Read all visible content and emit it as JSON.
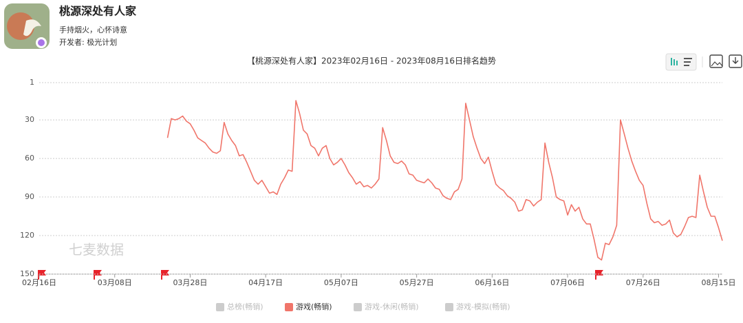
{
  "app": {
    "name": "桃源深处有人家",
    "tagline": "手持烟火，心怀诗意",
    "developer": "开发者: 极光计划"
  },
  "chart_data": {
    "type": "line",
    "title": "【桃源深处有人家】2023年02月16日 - 2023年08月16日排名趋势",
    "watermark": "七麦数据",
    "categories": [
      "02月16日",
      null,
      null,
      null,
      null,
      null,
      null,
      null,
      null,
      null,
      null,
      null,
      null,
      null,
      null,
      null,
      null,
      null,
      null,
      null,
      "03月08日",
      null,
      null,
      null,
      null,
      null,
      null,
      null,
      null,
      null,
      null,
      null,
      null,
      null,
      null,
      null,
      null,
      null,
      null,
      null,
      "03月28日",
      null,
      null,
      null,
      null,
      null,
      null,
      null,
      null,
      null,
      null,
      null,
      null,
      null,
      null,
      null,
      null,
      null,
      null,
      null,
      "04月17日",
      null,
      null,
      null,
      null,
      null,
      null,
      null,
      null,
      null,
      null,
      null,
      null,
      null,
      null,
      null,
      null,
      null,
      null,
      null,
      "05月07日",
      null,
      null,
      null,
      null,
      null,
      null,
      null,
      null,
      null,
      null,
      null,
      null,
      null,
      null,
      null,
      null,
      null,
      null,
      null,
      "05月27日",
      null,
      null,
      null,
      null,
      null,
      null,
      null,
      null,
      null,
      null,
      null,
      null,
      null,
      null,
      null,
      null,
      null,
      null,
      null,
      "06月16日",
      null,
      null,
      null,
      null,
      null,
      null,
      null,
      null,
      null,
      null,
      null,
      null,
      null,
      null,
      null,
      null,
      null,
      null,
      null,
      "07月06日",
      null,
      null,
      null,
      null,
      null,
      null,
      null,
      null,
      null,
      null,
      null,
      null,
      null,
      null,
      null,
      null,
      null,
      null,
      null,
      "07月26日",
      null,
      null,
      null,
      null,
      null,
      null,
      null,
      null,
      null,
      null,
      null,
      null,
      null,
      null,
      null,
      null,
      null,
      null,
      null,
      "08月15日",
      null
    ],
    "series": [
      {
        "name": "总榜(畅销)",
        "color": "#cccccc",
        "visible": false
      },
      {
        "name": "游戏(畅销)",
        "color": "#f0756a",
        "visible": true,
        "values": [
          null,
          null,
          null,
          null,
          null,
          null,
          null,
          null,
          null,
          null,
          null,
          null,
          null,
          null,
          null,
          null,
          null,
          null,
          null,
          null,
          null,
          null,
          null,
          null,
          null,
          null,
          null,
          null,
          null,
          null,
          null,
          null,
          null,
          null,
          44,
          29,
          30,
          29,
          27,
          31,
          33,
          38,
          44,
          46,
          48,
          52,
          55,
          56,
          54,
          32,
          41,
          46,
          50,
          58,
          57,
          63,
          70,
          77,
          80,
          77,
          82,
          87,
          86,
          88,
          80,
          75,
          69,
          70,
          15,
          25,
          38,
          41,
          50,
          52,
          58,
          52,
          50,
          60,
          65,
          63,
          60,
          65,
          71,
          75,
          80,
          78,
          82,
          81,
          83,
          80,
          76,
          36,
          46,
          58,
          63,
          64,
          62,
          65,
          72,
          73,
          77,
          78,
          79,
          76,
          79,
          83,
          84,
          89,
          91,
          92,
          86,
          84,
          76,
          17,
          30,
          43,
          52,
          60,
          64,
          59,
          70,
          80,
          83,
          85,
          89,
          91,
          94,
          101,
          100,
          92,
          93,
          97,
          94,
          92,
          48,
          63,
          75,
          90,
          92,
          93,
          104,
          96,
          101,
          98,
          107,
          111,
          111,
          123,
          137,
          139,
          126,
          127,
          121,
          112,
          30,
          41,
          52,
          62,
          70,
          77,
          81,
          95,
          107,
          110,
          109,
          112,
          111,
          108,
          118,
          121,
          119,
          113,
          106,
          105,
          106,
          73,
          86,
          98,
          105,
          105,
          114,
          124
        ]
      },
      {
        "name": "游戏-休闲(畅销)",
        "color": "#cccccc",
        "visible": false
      },
      {
        "name": "游戏-模拟(畅销)",
        "color": "#cccccc",
        "visible": false
      }
    ],
    "ylim": [
      150,
      1
    ],
    "yticks": [
      1,
      30,
      60,
      90,
      120,
      150
    ],
    "grid": true
  }
}
